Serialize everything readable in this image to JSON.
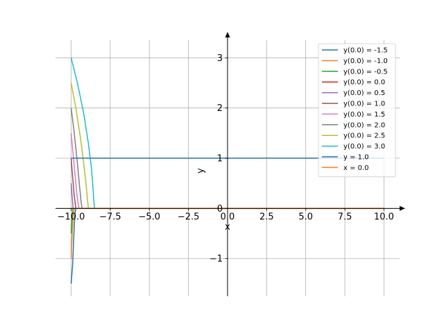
{
  "chart_data": {
    "type": "line",
    "title": "",
    "xlabel": "x",
    "ylabel": "y",
    "xlim": [
      -11.0,
      11.0
    ],
    "ylim": [
      -1.75,
      3.35
    ],
    "grid": true,
    "legend_position": "top-right",
    "x_ticks": [
      -10.0,
      -7.5,
      -5.0,
      -2.5,
      0.0,
      2.5,
      5.0,
      7.5,
      10.0
    ],
    "x_tick_labels": [
      "−10.0",
      "−7.5",
      "−5.0",
      "−2.5",
      "0.0",
      "2.5",
      "5.0",
      "7.5",
      "10.0"
    ],
    "y_ticks": [
      -1,
      0,
      1,
      2,
      3
    ],
    "y_tick_labels": [
      "−1",
      "0",
      "1",
      "2",
      "3"
    ],
    "series": [
      {
        "name": "y(0.0) = -1.5",
        "color": "#1f77b4",
        "x": [
          -10.0,
          -9.9,
          -9.85,
          -9.8,
          -9.75,
          -9.7
        ],
        "y": [
          -1.5,
          -1.1,
          -0.7,
          -0.35,
          -0.1,
          0.0
        ]
      },
      {
        "name": "y(0.0) = -1.0",
        "color": "#ff7f0e",
        "x": [
          -10.0,
          -9.95,
          -9.9,
          -9.85,
          -9.8
        ],
        "y": [
          -1.0,
          -0.6,
          -0.3,
          -0.1,
          0.0
        ]
      },
      {
        "name": "y(0.0) = -0.5",
        "color": "#2ca02c",
        "x": [
          -10.0,
          -9.95,
          -9.9
        ],
        "y": [
          -0.5,
          -0.2,
          0.0
        ]
      },
      {
        "name": "y(0.0) = 0.0",
        "color": "#d62728",
        "x": [
          -10.0,
          10.0
        ],
        "y": [
          0.0,
          0.0
        ]
      },
      {
        "name": "y(0.0) = 0.5",
        "color": "#9467bd",
        "x": [
          -10.0,
          -9.95,
          -9.9,
          -9.87
        ],
        "y": [
          0.5,
          0.3,
          0.1,
          0.0
        ]
      },
      {
        "name": "y(0.0) = 1.0",
        "color": "#8c564b",
        "x": [
          -10.0,
          -9.9,
          -9.8,
          -9.7
        ],
        "y": [
          1.0,
          0.6,
          0.25,
          0.0
        ]
      },
      {
        "name": "y(0.0) = 1.5",
        "color": "#e377c2",
        "x": [
          -10.0,
          -9.85,
          -9.7,
          -9.6,
          -9.5
        ],
        "y": [
          1.5,
          1.0,
          0.5,
          0.2,
          0.0
        ]
      },
      {
        "name": "y(0.0) = 2.0",
        "color": "#7f7f7f",
        "x": [
          -10.0,
          -9.8,
          -9.6,
          -9.45,
          -9.35,
          -9.3
        ],
        "y": [
          2.0,
          1.5,
          0.9,
          0.4,
          0.1,
          0.0
        ]
      },
      {
        "name": "y(0.0) = 2.5",
        "color": "#bcbd22",
        "x": [
          -10.0,
          -9.7,
          -9.4,
          -9.2,
          -9.05,
          -8.95,
          -8.9,
          10.0
        ],
        "y": [
          2.5,
          2.0,
          1.4,
          0.9,
          0.5,
          0.15,
          0.0,
          0.0
        ]
      },
      {
        "name": "y(0.0) = 3.0",
        "color": "#17becf",
        "x": [
          -10.0,
          -9.6,
          -9.2,
          -8.9,
          -8.7,
          -8.6,
          -8.55,
          -8.5
        ],
        "y": [
          3.0,
          2.5,
          1.9,
          1.3,
          0.8,
          0.4,
          0.15,
          0.0
        ]
      },
      {
        "name": "y = 1.0",
        "color": "#1f77b4",
        "x": [
          -10.0,
          10.0
        ],
        "y": [
          1.0,
          1.0
        ]
      },
      {
        "name": "x = 0.0",
        "color": "#ff7f0e",
        "x": [
          -10.0,
          10.0
        ],
        "y": [
          0.0,
          0.0
        ]
      }
    ]
  }
}
